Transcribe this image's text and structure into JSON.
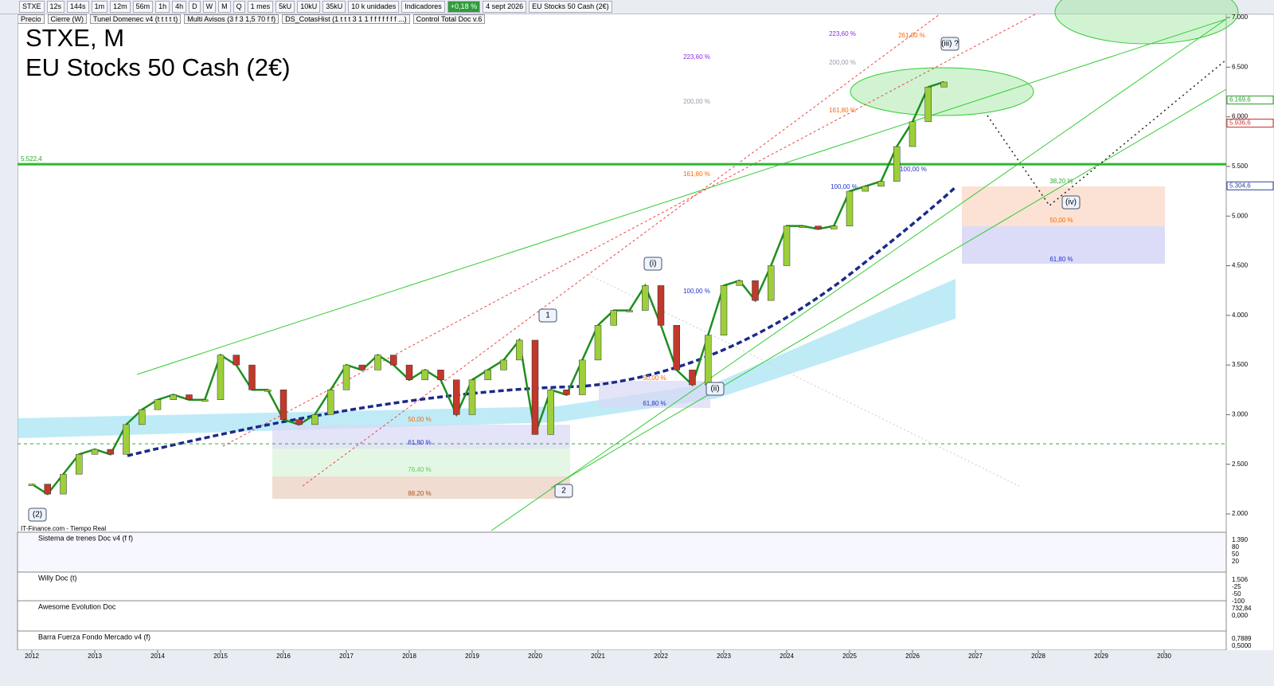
{
  "toolbar": {
    "items": [
      "STXE",
      "12s",
      "144s",
      "1m",
      "12m",
      "56m",
      "1h",
      "4h",
      "D",
      "W",
      "M",
      "Q",
      "1 mes",
      "5kU",
      "10kU",
      "35kU",
      "10 k unidades",
      "Indicadores",
      "+0,18 %",
      "4 sept 2026",
      "EU Stocks 50 Cash (2€)"
    ]
  },
  "indicator_bar": {
    "items": [
      "Precio",
      "Cierre (W)",
      "Tunel Domenec v4 (t t t t t)",
      "Multi Avisos (3 f 3 1,5 70 f f)",
      "DS_CotasHist (1 t t t 3 1 1 f f f f f f f ...)",
      "Control Total Doc v.6"
    ]
  },
  "chart": {
    "title": "STXE, M",
    "subtitle": "EU Stocks 50 Cash (2€)",
    "source": "IT-Finance.com - Tiempo Real",
    "ylim": [
      2000,
      7000
    ],
    "yticks": [
      {
        "value": 7000,
        "label": "7.000"
      },
      {
        "value": 6500,
        "label": "6.500"
      },
      {
        "value": 6000,
        "label": "6.000"
      },
      {
        "value": 5500,
        "label": "5.500"
      },
      {
        "value": 5000,
        "label": "5.000"
      },
      {
        "value": 4500,
        "label": "4.500"
      },
      {
        "value": 4000,
        "label": "4.000"
      },
      {
        "value": 3500,
        "label": "3.500"
      },
      {
        "value": 3000,
        "label": "3.000"
      },
      {
        "value": 2500,
        "label": "2.500"
      },
      {
        "value": 2000,
        "label": "2.000"
      }
    ],
    "xlim": [
      2012,
      2030
    ],
    "xticks": [
      2012,
      2013,
      2014,
      2015,
      2016,
      2017,
      2018,
      2019,
      2020,
      2021,
      2022,
      2023,
      2024,
      2025,
      2026,
      2027,
      2028,
      2029,
      2030
    ],
    "price": {
      "x": [
        2012,
        2012.25,
        2012.5,
        2012.75,
        2013,
        2013.25,
        2013.5,
        2013.75,
        2014,
        2014.25,
        2014.5,
        2014.75,
        2015,
        2015.25,
        2015.5,
        2015.75,
        2016,
        2016.25,
        2016.5,
        2016.75,
        2017,
        2017.25,
        2017.5,
        2017.75,
        2018,
        2018.25,
        2018.5,
        2018.75,
        2019,
        2019.25,
        2019.5,
        2019.75,
        2020,
        2020.25,
        2020.5,
        2020.75,
        2021,
        2021.25,
        2021.5,
        2021.75,
        2022,
        2022.25,
        2022.5,
        2022.75,
        2023,
        2023.25,
        2023.5,
        2023.75,
        2024,
        2024.25,
        2024.5,
        2024.75,
        2025,
        2025.25,
        2025.5,
        2025.75,
        2026,
        2026.25,
        2026.5
      ],
      "values": [
        2300,
        2200,
        2400,
        2600,
        2650,
        2600,
        2900,
        3050,
        3150,
        3200,
        3150,
        3150,
        3600,
        3500,
        3250,
        3250,
        2950,
        2900,
        3000,
        3250,
        3500,
        3450,
        3600,
        3500,
        3350,
        3450,
        3350,
        3000,
        3350,
        3450,
        3550,
        3750,
        2800,
        3250,
        3200,
        3550,
        3900,
        4050,
        4050,
        4300,
        3900,
        3450,
        3300,
        3800,
        4300,
        4350,
        4150,
        4500,
        4900,
        4900,
        4870,
        4900,
        5250,
        5300,
        5350,
        5700,
        5950,
        6300,
        6350
      ]
    },
    "levels": [
      {
        "value": 5522.4,
        "label": "5.522,4"
      }
    ],
    "price_tags": [
      {
        "value": 6169.6,
        "label": "6.169,6"
      },
      {
        "value": 5936.6,
        "label": "5.936,6"
      },
      {
        "value": 5304.6,
        "label": "5.304,6"
      }
    ],
    "fib_labels": [
      "223,60 %",
      "223,60 %",
      "261,80 %",
      "200,00 %",
      "200,00 %",
      "161,80 %",
      "161,80 %",
      "100,00 %",
      "100,00 %",
      "100,00 %",
      "50,00 %",
      "61,80 %",
      "50,00 %",
      "61,80 %",
      "76,40 %",
      "88,20 %",
      "38,20 %",
      "50,00 %",
      "61,80 %"
    ],
    "wave_labels": [
      "(2)",
      "1",
      "2",
      "(i)",
      "(ii)",
      "(iii) ?",
      "(iv)"
    ]
  },
  "panels": [
    {
      "title": "Sistema de trenes Doc v4 (f f)",
      "labels": [
        "1.390",
        "80",
        "50",
        "20"
      ]
    },
    {
      "title": "Willy Doc (t)",
      "labels": [
        "1.506",
        "-25",
        "-50",
        "-100"
      ]
    },
    {
      "title": "Awesome Evolution Doc",
      "labels": [
        "732,84",
        "0,000"
      ]
    },
    {
      "title": "Barra Fuerza Fondo Mercado v4 (f)",
      "labels": [
        "0,7889",
        "0,5000"
      ]
    }
  ]
}
